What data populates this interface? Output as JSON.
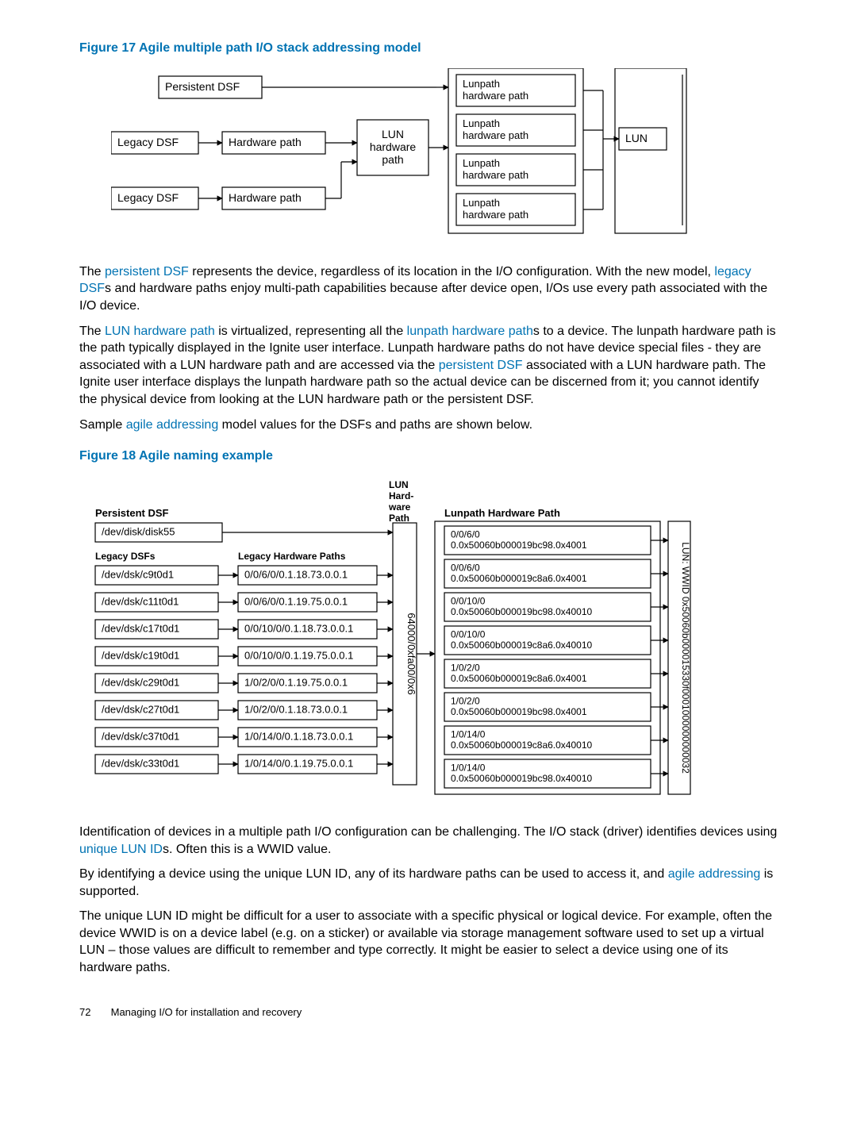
{
  "figure17": {
    "caption": "Figure 17 Agile multiple path I/O stack addressing model",
    "boxes": {
      "persistentDsf": "Persistent DSF",
      "legacyDsf1": "Legacy DSF",
      "legacyDsf2": "Legacy DSF",
      "hwPath1": "Hardware path",
      "hwPath2": "Hardware path",
      "lunHwPath": "LUN\nhardware\npath",
      "lunpath1": "Lunpath\nhardware path",
      "lunpath2": "Lunpath\nhardware path",
      "lunpath3": "Lunpath\nhardware path",
      "lunpath4": "Lunpath\nhardware path",
      "lun": "LUN"
    }
  },
  "para1_a": "The ",
  "para1_link1": "persistent DSF",
  "para1_b": " represents the device, regardless of its location in the I/O configuration. With the new model, ",
  "para1_link2": "legacy DSF",
  "para1_c": "s and hardware paths enjoy multi-path capabilities because after device open, I/Os use every path associated with the I/O device.",
  "para2_a": "The ",
  "para2_link1": "LUN hardware path",
  "para2_b": " is virtualized, representing all the ",
  "para2_link2": "lunpath hardware path",
  "para2_c": "s to a device. The lunpath hardware path is the path typically displayed in the Ignite user interface. Lunpath hardware paths do not have device special files - they are associated with a LUN hardware path and are accessed via the ",
  "para2_link3": "persistent DSF",
  "para2_d": " associated with a LUN hardware path. The Ignite user interface displays the lunpath hardware path so the actual device can be discerned from it; you cannot identify the physical device from looking at the LUN hardware path or the persistent DSF.",
  "para3_a": "Sample ",
  "para3_link1": "agile addressing",
  "para3_b": " model values for the DSFs and paths are shown below.",
  "figure18": {
    "caption": "Figure 18 Agile naming example",
    "headers": {
      "persistentDsf": "Persistent DSF",
      "lunHwPath": "LUN\nHard-\nware\nPath",
      "lunpathHwPath": "Lunpath Hardware Path",
      "legacyDsfs": "Legacy DSFs",
      "legacyHwPaths": "Legacy Hardware Paths"
    },
    "persistentDsfVal": "/dev/disk/disk55",
    "lunHwPathVal": "64000/0xfa00/0x6",
    "wwidLabel": "LUN: WWID 0x50060b000015330f0001000000000032",
    "legacyRows": [
      {
        "dsf": "/dev/dsk/c9t0d1",
        "hw": "0/0/6/0/0.1.18.73.0.0.1"
      },
      {
        "dsf": "/dev/dsk/c11t0d1",
        "hw": "0/0/6/0/0.1.19.75.0.0.1"
      },
      {
        "dsf": "/dev/dsk/c17t0d1",
        "hw": "0/0/10/0/0.1.18.73.0.0.1"
      },
      {
        "dsf": "/dev/dsk/c19t0d1",
        "hw": "0/0/10/0/0.1.19.75.0.0.1"
      },
      {
        "dsf": "/dev/dsk/c29t0d1",
        "hw": "1/0/2/0/0.1.19.75.0.0.1"
      },
      {
        "dsf": "/dev/dsk/c27t0d1",
        "hw": "1/0/2/0/0.1.18.73.0.0.1"
      },
      {
        "dsf": "/dev/dsk/c37t0d1",
        "hw": "1/0/14/0/0.1.18.73.0.0.1"
      },
      {
        "dsf": "/dev/dsk/c33t0d1",
        "hw": "1/0/14/0/0.1.19.75.0.0.1"
      }
    ],
    "lunpathRows": [
      {
        "a": "0/0/6/0",
        "b": "0.0x50060b000019bc98.0x4001"
      },
      {
        "a": "0/0/6/0",
        "b": "0.0x50060b000019c8a6.0x4001"
      },
      {
        "a": "0/0/10/0",
        "b": "0.0x50060b000019bc98.0x40010"
      },
      {
        "a": "0/0/10/0",
        "b": "0.0x50060b000019c8a6.0x40010"
      },
      {
        "a": "1/0/2/0",
        "b": "0.0x50060b000019c8a6.0x4001"
      },
      {
        "a": "1/0/2/0",
        "b": "0.0x50060b000019bc98.0x4001"
      },
      {
        "a": "1/0/14/0",
        "b": "0.0x50060b000019c8a6.0x40010"
      },
      {
        "a": "1/0/14/0",
        "b": "0.0x50060b000019bc98.0x40010"
      }
    ]
  },
  "para4_a": "Identification of devices in a multiple path I/O configuration can be challenging. The I/O stack (driver) identifies devices using ",
  "para4_link1": "unique LUN ID",
  "para4_b": "s. Often this is a WWID value.",
  "para5_a": "By identifying a device using the unique LUN ID, any of its hardware paths can be used to access it, and ",
  "para5_link1": "agile addressing",
  "para5_b": " is supported.",
  "para6": "The unique LUN ID might be difficult for a user to associate with a specific physical or logical device. For example, often the device WWID is on a device label (e.g. on a sticker) or available via storage management software used to set up a virtual LUN – those values are difficult to remember and type correctly. It might be easier to select a device using one of its hardware paths.",
  "footer": {
    "page": "72",
    "title": "Managing I/O for installation and recovery"
  },
  "style": {
    "stroke": "#000",
    "strokeWidth": 1.2,
    "fontSize": 14,
    "smallFontSize": 13,
    "headerFontSize": 13
  }
}
